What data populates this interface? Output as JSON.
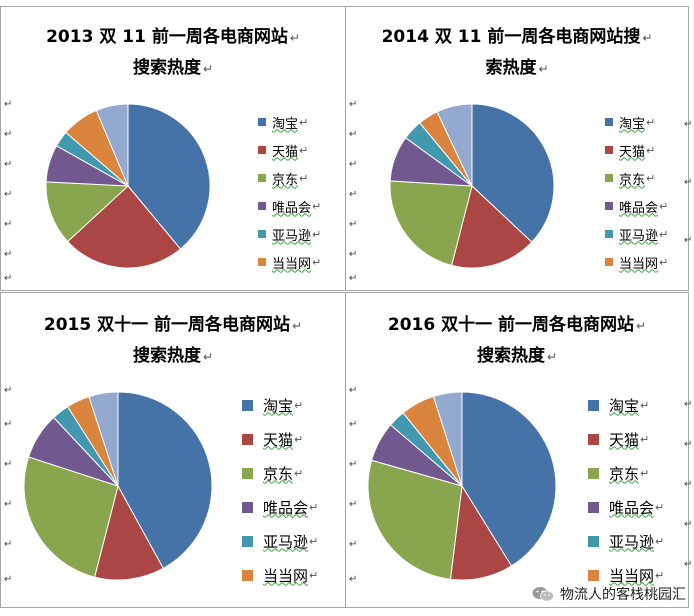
{
  "colors": [
    "#4572a7",
    "#aa4643",
    "#89a54e",
    "#71588f",
    "#4198af",
    "#db843d",
    "#93a9cf"
  ],
  "para_mark": "↵",
  "chart_data": [
    {
      "type": "pie",
      "title_lines": [
        "2013 双 11  前一周各电商网站",
        "搜索热度"
      ],
      "categories": [
        "淘宝",
        "天猫",
        "京东",
        "唯品会",
        "亚马逊",
        "当当网",
        ""
      ],
      "values": [
        37,
        23,
        12,
        7,
        3,
        7,
        6
      ],
      "legend_position": "right"
    },
    {
      "type": "pie",
      "title_lines": [
        "2014 双 11  前一周各电商网站搜",
        "索热度"
      ],
      "categories": [
        "淘宝",
        "天猫",
        "京东",
        "唯品会",
        "亚马逊",
        "当当网",
        ""
      ],
      "values": [
        37,
        17,
        22,
        9,
        4,
        4,
        7
      ],
      "legend_position": "right"
    },
    {
      "type": "pie",
      "title_lines": [
        "2015 双十一  前一周各电商网站",
        "搜索热度"
      ],
      "categories": [
        "淘宝",
        "天猫",
        "京东",
        "唯品会",
        "亚马逊",
        "当当网",
        ""
      ],
      "values": [
        42,
        12,
        26,
        8,
        3,
        4,
        5
      ],
      "legend_position": "right"
    },
    {
      "type": "pie",
      "title_lines": [
        "2016 双十一  前一周各电商网站",
        "搜索热度"
      ],
      "categories": [
        "淘宝",
        "天猫",
        "京东",
        "唯品会",
        "亚马逊",
        "当当网",
        ""
      ],
      "values": [
        42,
        11,
        28,
        7,
        3,
        6,
        5
      ],
      "legend_position": "right"
    }
  ],
  "watermark": {
    "text": "物流人的客栈桃园汇",
    "icon": "wechat-icon"
  }
}
